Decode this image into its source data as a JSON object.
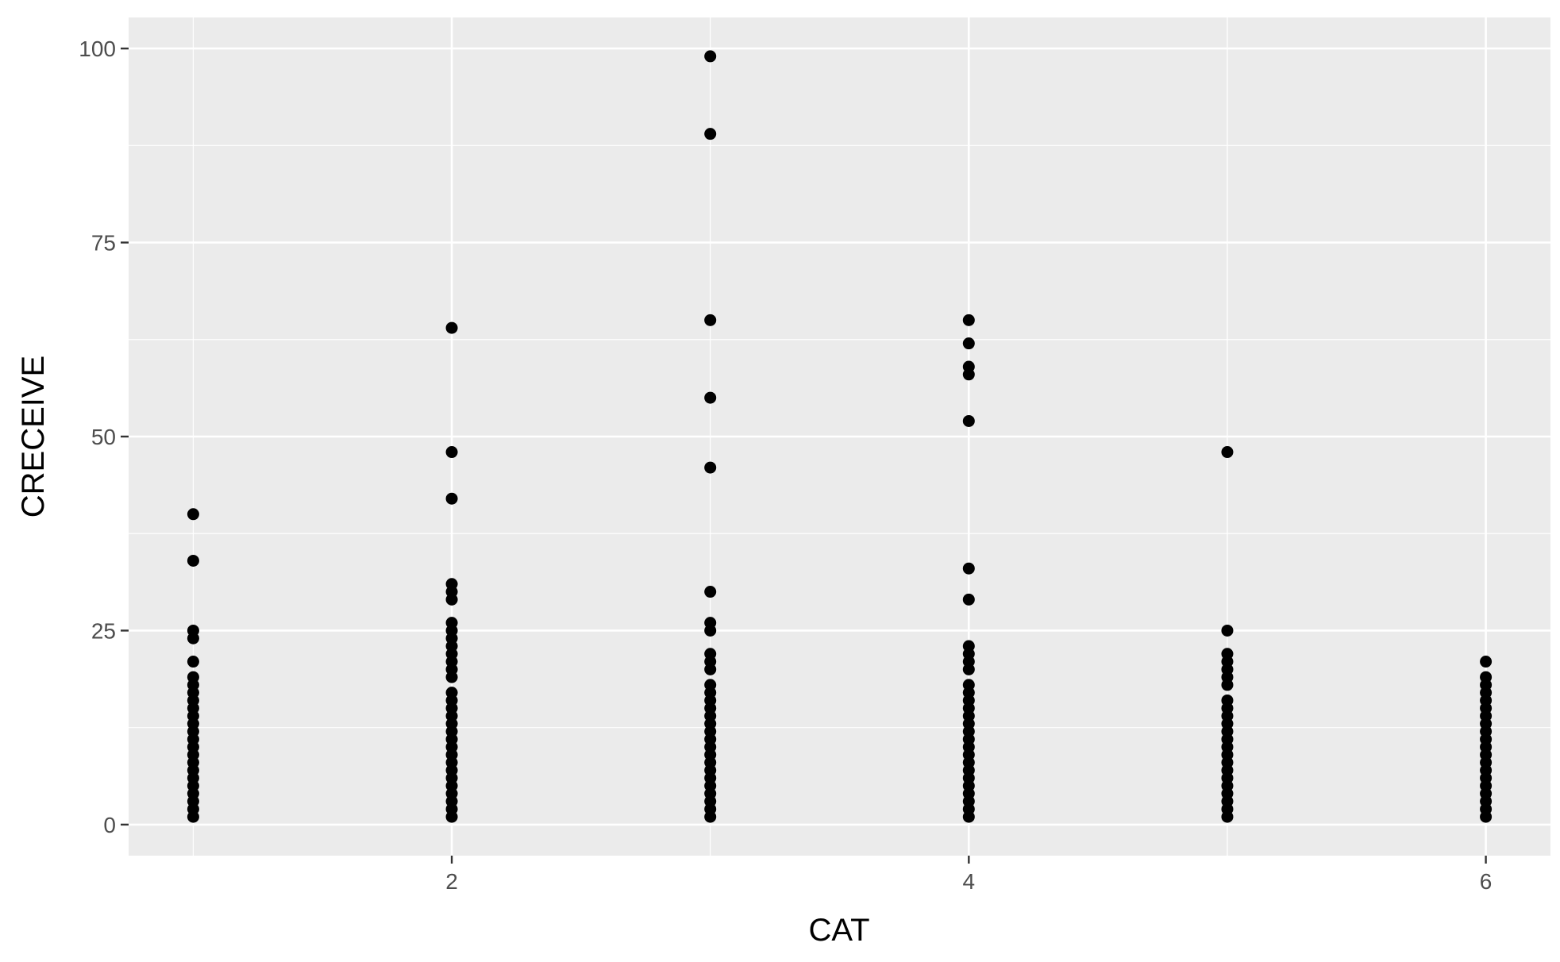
{
  "chart_data": {
    "type": "scatter",
    "xlabel": "CAT",
    "ylabel": "CRECEIVE",
    "xlim": [
      0.75,
      6.25
    ],
    "ylim": [
      -4,
      104
    ],
    "x_ticks": [
      2,
      4,
      6
    ],
    "y_ticks": [
      0,
      25,
      50,
      75,
      100
    ],
    "x_tick_labels": [
      "2",
      "4",
      "6"
    ],
    "y_tick_labels": [
      "0",
      "25",
      "50",
      "75",
      "100"
    ],
    "grid": true,
    "panel_background": "#ebebeb",
    "grid_color": "#ffffff",
    "point_color": "#000000",
    "series": [
      {
        "points": [
          [
            1,
            1
          ],
          [
            1,
            2
          ],
          [
            1,
            3
          ],
          [
            1,
            4
          ],
          [
            1,
            5
          ],
          [
            1,
            6
          ],
          [
            1,
            7
          ],
          [
            1,
            8
          ],
          [
            1,
            9
          ],
          [
            1,
            10
          ],
          [
            1,
            11
          ],
          [
            1,
            12
          ],
          [
            1,
            13
          ],
          [
            1,
            14
          ],
          [
            1,
            15
          ],
          [
            1,
            16
          ],
          [
            1,
            17
          ],
          [
            1,
            18
          ],
          [
            1,
            19
          ],
          [
            1,
            21
          ],
          [
            1,
            24
          ],
          [
            1,
            25
          ],
          [
            1,
            34
          ],
          [
            1,
            40
          ],
          [
            2,
            1
          ],
          [
            2,
            2
          ],
          [
            2,
            3
          ],
          [
            2,
            4
          ],
          [
            2,
            5
          ],
          [
            2,
            6
          ],
          [
            2,
            7
          ],
          [
            2,
            8
          ],
          [
            2,
            9
          ],
          [
            2,
            10
          ],
          [
            2,
            11
          ],
          [
            2,
            12
          ],
          [
            2,
            13
          ],
          [
            2,
            14
          ],
          [
            2,
            15
          ],
          [
            2,
            16
          ],
          [
            2,
            17
          ],
          [
            2,
            19
          ],
          [
            2,
            20
          ],
          [
            2,
            21
          ],
          [
            2,
            22
          ],
          [
            2,
            23
          ],
          [
            2,
            24
          ],
          [
            2,
            25
          ],
          [
            2,
            26
          ],
          [
            2,
            29
          ],
          [
            2,
            30
          ],
          [
            2,
            31
          ],
          [
            2,
            42
          ],
          [
            2,
            48
          ],
          [
            2,
            64
          ],
          [
            3,
            1
          ],
          [
            3,
            2
          ],
          [
            3,
            3
          ],
          [
            3,
            4
          ],
          [
            3,
            5
          ],
          [
            3,
            6
          ],
          [
            3,
            7
          ],
          [
            3,
            8
          ],
          [
            3,
            9
          ],
          [
            3,
            10
          ],
          [
            3,
            11
          ],
          [
            3,
            12
          ],
          [
            3,
            13
          ],
          [
            3,
            14
          ],
          [
            3,
            15
          ],
          [
            3,
            16
          ],
          [
            3,
            17
          ],
          [
            3,
            18
          ],
          [
            3,
            20
          ],
          [
            3,
            21
          ],
          [
            3,
            22
          ],
          [
            3,
            25
          ],
          [
            3,
            26
          ],
          [
            3,
            30
          ],
          [
            3,
            46
          ],
          [
            3,
            55
          ],
          [
            3,
            65
          ],
          [
            3,
            89
          ],
          [
            3,
            99
          ],
          [
            4,
            1
          ],
          [
            4,
            2
          ],
          [
            4,
            3
          ],
          [
            4,
            4
          ],
          [
            4,
            5
          ],
          [
            4,
            6
          ],
          [
            4,
            7
          ],
          [
            4,
            8
          ],
          [
            4,
            9
          ],
          [
            4,
            10
          ],
          [
            4,
            11
          ],
          [
            4,
            12
          ],
          [
            4,
            13
          ],
          [
            4,
            14
          ],
          [
            4,
            15
          ],
          [
            4,
            16
          ],
          [
            4,
            17
          ],
          [
            4,
            18
          ],
          [
            4,
            20
          ],
          [
            4,
            21
          ],
          [
            4,
            22
          ],
          [
            4,
            23
          ],
          [
            4,
            29
          ],
          [
            4,
            33
          ],
          [
            4,
            52
          ],
          [
            4,
            58
          ],
          [
            4,
            59
          ],
          [
            4,
            62
          ],
          [
            4,
            65
          ],
          [
            5,
            1
          ],
          [
            5,
            2
          ],
          [
            5,
            3
          ],
          [
            5,
            4
          ],
          [
            5,
            5
          ],
          [
            5,
            6
          ],
          [
            5,
            7
          ],
          [
            5,
            8
          ],
          [
            5,
            9
          ],
          [
            5,
            10
          ],
          [
            5,
            11
          ],
          [
            5,
            12
          ],
          [
            5,
            13
          ],
          [
            5,
            14
          ],
          [
            5,
            15
          ],
          [
            5,
            16
          ],
          [
            5,
            18
          ],
          [
            5,
            19
          ],
          [
            5,
            20
          ],
          [
            5,
            21
          ],
          [
            5,
            22
          ],
          [
            5,
            25
          ],
          [
            5,
            48
          ],
          [
            6,
            1
          ],
          [
            6,
            2
          ],
          [
            6,
            3
          ],
          [
            6,
            4
          ],
          [
            6,
            5
          ],
          [
            6,
            6
          ],
          [
            6,
            7
          ],
          [
            6,
            8
          ],
          [
            6,
            9
          ],
          [
            6,
            10
          ],
          [
            6,
            11
          ],
          [
            6,
            12
          ],
          [
            6,
            13
          ],
          [
            6,
            14
          ],
          [
            6,
            15
          ],
          [
            6,
            16
          ],
          [
            6,
            17
          ],
          [
            6,
            18
          ],
          [
            6,
            19
          ],
          [
            6,
            21
          ]
        ]
      }
    ]
  }
}
